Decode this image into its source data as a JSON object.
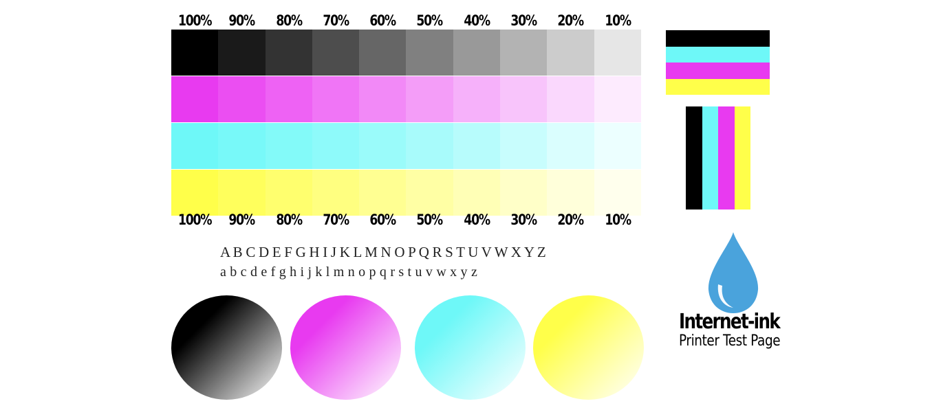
{
  "percent_labels": [
    "100%",
    "90%",
    "80%",
    "70%",
    "60%",
    "50%",
    "40%",
    "30%",
    "20%",
    "10%"
  ],
  "swatch_colors": {
    "black": [
      "#000000",
      "#1a1a1a",
      "#333333",
      "#4d4d4d",
      "#666666",
      "#808080",
      "#999999",
      "#b3b3b3",
      "#cccccc",
      "#e6e6e6"
    ],
    "magenta": [
      "#e83af0",
      "#eb4ef2",
      "#ee62f4",
      "#f075f6",
      "#f289f7",
      "#f49df8",
      "#f6b1fa",
      "#f8c4fb",
      "#fad8fd",
      "#fdebfe"
    ],
    "cyan": [
      "#6ef8f8",
      "#78f9f9",
      "#83faf9",
      "#8efafa",
      "#9afbfa",
      "#a8fbfb",
      "#b7fcfc",
      "#c8fdfd",
      "#dafefe",
      "#ecffff"
    ],
    "yellow": [
      "#ffff4a",
      "#ffff5c",
      "#ffff6e",
      "#ffff80",
      "#ffff92",
      "#ffffa4",
      "#ffffb6",
      "#ffffc8",
      "#ffffda",
      "#ffffed"
    ]
  },
  "alphabet": {
    "upper": "A B C D E F G H I J K L M N O P Q R S T U V W X Y Z",
    "lower": "a b c d e f g h i j k l m n o p q r s t u v w x y z"
  },
  "circles": [
    {
      "name": "black-gradient-circle",
      "from": "#000000",
      "to": "#ffffff"
    },
    {
      "name": "magenta-gradient-circle",
      "from": "#e83af0",
      "to": "#ffffff"
    },
    {
      "name": "cyan-gradient-circle",
      "from": "#6ef8f8",
      "to": "#ffffff"
    },
    {
      "name": "yellow-gradient-circle",
      "from": "#ffff4a",
      "to": "#ffffff"
    }
  ],
  "bar_colors": [
    "#000000",
    "#6ef8f8",
    "#e83af0",
    "#ffff4a"
  ],
  "logo": {
    "icon": "water-drop-icon",
    "drop_color": "#4aa3dc",
    "brand": "Internet-ink",
    "subtitle": "Printer Test Page"
  }
}
